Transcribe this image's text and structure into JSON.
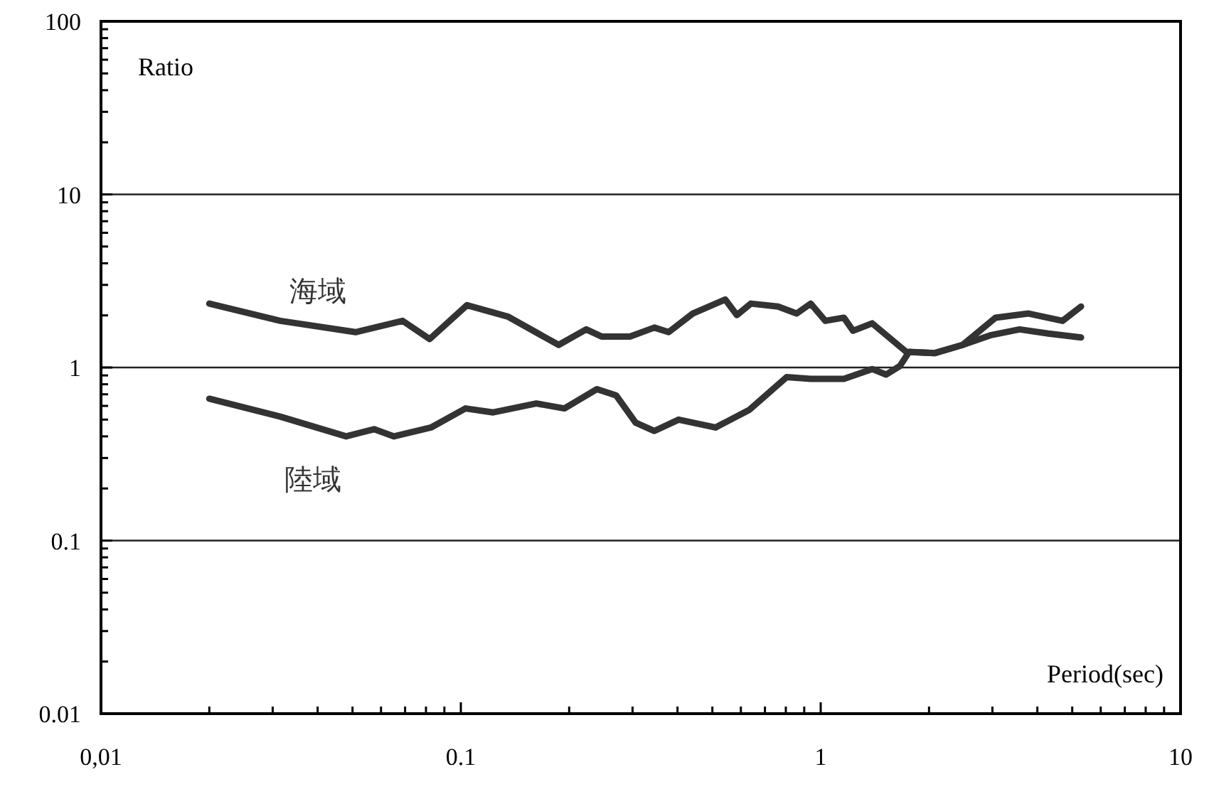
{
  "chart_data": {
    "type": "line",
    "xlabel": "Period(sec)",
    "ylabel": "Ratio",
    "log": "xy",
    "grid": "y",
    "marker": "none",
    "line_style": "solid",
    "xlim": [
      0.01,
      10
    ],
    "ylim": [
      0.01,
      100
    ],
    "xticks": [
      {
        "value": 0.01,
        "label": "0,01"
      },
      0.1,
      1,
      10
    ],
    "yticks": [
      0.01,
      0.1,
      1,
      10,
      100
    ],
    "series": [
      {
        "name": "海域",
        "color": "#333333",
        "x": [
          0.02,
          0.0315,
          0.051,
          0.0689,
          0.0819,
          0.104,
          0.135,
          0.187,
          0.223,
          0.246,
          0.295,
          0.345,
          0.378,
          0.441,
          0.543,
          0.585,
          0.64,
          0.761,
          0.857,
          0.938,
          1.03,
          1.16,
          1.23,
          1.39,
          1.73,
          2.07,
          2.48,
          2.98,
          3.57,
          4.29,
          5.29
        ],
        "values": [
          2.34,
          1.86,
          1.6,
          1.86,
          1.46,
          2.29,
          1.97,
          1.35,
          1.66,
          1.51,
          1.51,
          1.7,
          1.6,
          2.05,
          2.47,
          2.01,
          2.34,
          2.25,
          2.05,
          2.34,
          1.86,
          1.94,
          1.63,
          1.8,
          1.23,
          1.21,
          1.35,
          1.54,
          1.66,
          1.57,
          1.49
        ]
      },
      {
        "name": "陸域",
        "color": "#333333",
        "x": [
          0.02,
          0.0315,
          0.048,
          0.0574,
          0.0652,
          0.0826,
          0.103,
          0.123,
          0.162,
          0.194,
          0.239,
          0.27,
          0.306,
          0.345,
          0.403,
          0.51,
          0.634,
          0.804,
          0.938,
          1.16,
          1.39,
          1.52,
          1.66,
          1.76,
          2.07,
          2.48,
          3.06,
          3.78,
          4.7,
          5.29
        ],
        "values": [
          0.66,
          0.52,
          0.4,
          0.44,
          0.4,
          0.45,
          0.58,
          0.55,
          0.62,
          0.58,
          0.75,
          0.69,
          0.48,
          0.43,
          0.5,
          0.45,
          0.57,
          0.88,
          0.86,
          0.86,
          0.98,
          0.91,
          1.02,
          1.23,
          1.21,
          1.35,
          1.94,
          2.05,
          1.86,
          2.25
        ]
      }
    ]
  }
}
